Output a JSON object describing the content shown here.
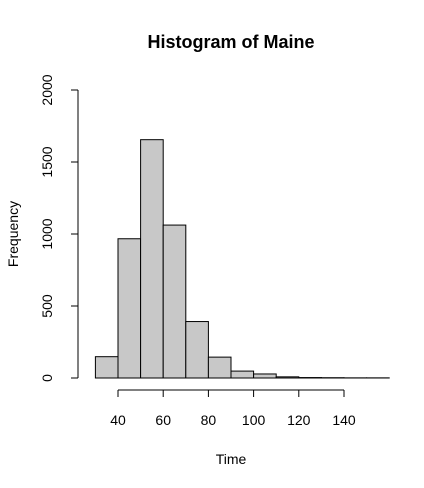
{
  "chart_data": {
    "type": "bar",
    "title": "Histogram of Maine",
    "xlabel": "Time",
    "ylabel": "Frequency",
    "bin_edges": [
      30,
      40,
      50,
      60,
      70,
      80,
      90,
      100,
      110,
      120,
      130,
      140,
      150,
      160
    ],
    "values": [
      148,
      967,
      1655,
      1062,
      392,
      145,
      48,
      28,
      8,
      3,
      2,
      1,
      1
    ],
    "xticks": [
      40,
      60,
      80,
      100,
      120,
      140
    ],
    "yticks": [
      0,
      500,
      1000,
      1500,
      2000
    ],
    "xlim": [
      30,
      160
    ],
    "ylim": [
      0,
      2000
    ],
    "grid": false,
    "fill_color": "#c8c8c8",
    "border_color": "#000000"
  }
}
